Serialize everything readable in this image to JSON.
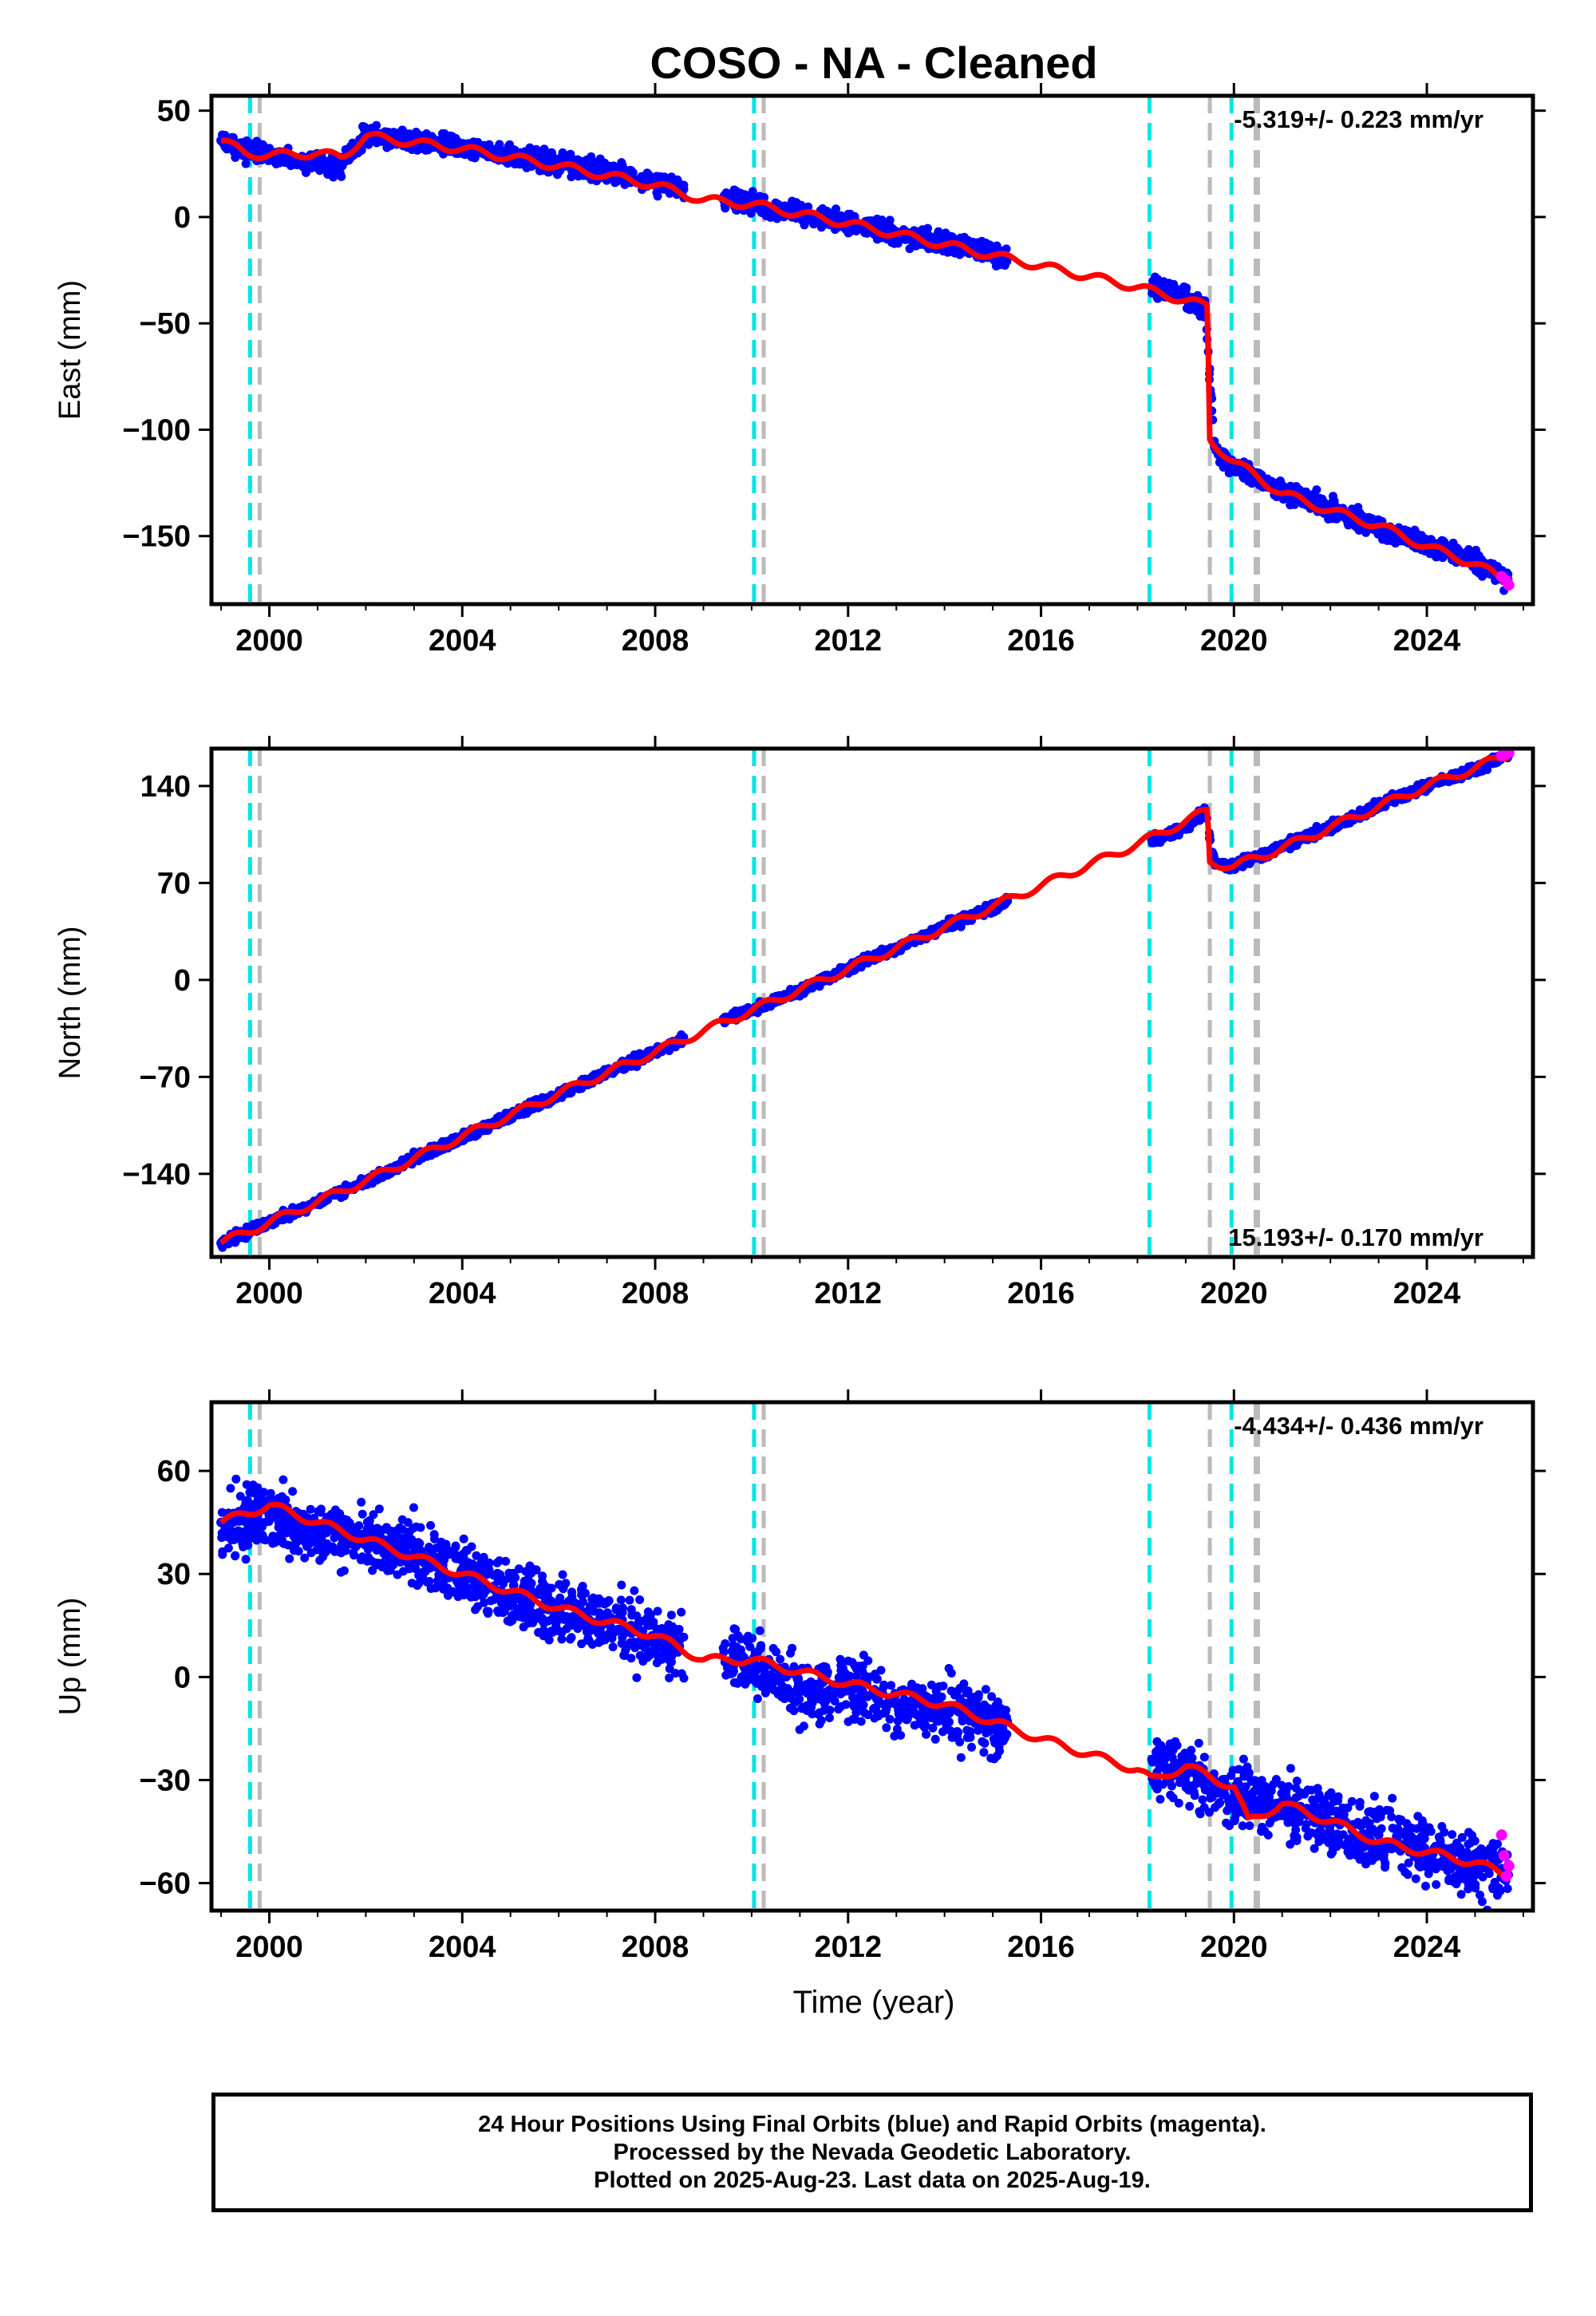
{
  "title": "COSO  - NA - Cleaned",
  "x_axis_label": "Time (year)",
  "footer": {
    "line1": "24 Hour Positions Using Final Orbits (blue) and Rapid Orbits (magenta).",
    "line2": "Processed by the Nevada Geodetic Laboratory.",
    "line3": "Plotted on 2025-Aug-23. Last data on 2025-Aug-19."
  },
  "colors": {
    "final_orbits": "#0000ff",
    "rapid_orbits": "#ff00ff",
    "model": "#ff0000",
    "cyan_lines": "#00e5e5",
    "gray_lines": "#bbbbbb"
  },
  "chart_data": [
    {
      "type": "scatter",
      "panel": "east",
      "ylabel": "East (mm)",
      "rate_label": "-5.319+/- 0.223 mm/yr",
      "rate_position": "top-right",
      "xlim": [
        1998.8,
        2026.2
      ],
      "ylim": [
        -182,
        57
      ],
      "xticks": [
        2000,
        2004,
        2008,
        2012,
        2016,
        2020,
        2024
      ],
      "yticks": [
        50,
        0,
        -50,
        -100,
        -150
      ],
      "ytick_labels": [
        "50",
        "0",
        "−50",
        "−100",
        "−150"
      ],
      "cyan_vlines": [
        1999.6,
        2010.05,
        2018.25,
        2019.95
      ],
      "gray_vlines": [
        1999.8,
        2010.25,
        2019.5,
        2020.45,
        2020.5
      ],
      "model_points": [
        [
          1999.0,
          36
        ],
        [
          1999.5,
          30
        ],
        [
          2000.0,
          29
        ],
        [
          2001.0,
          30
        ],
        [
          2001.5,
          28
        ],
        [
          2002.0,
          38
        ],
        [
          2003.0,
          35
        ],
        [
          2004.0,
          32
        ],
        [
          2006.0,
          24
        ],
        [
          2008.0,
          15
        ],
        [
          2009.0,
          8
        ],
        [
          2010.0,
          6
        ],
        [
          2012.0,
          -3
        ],
        [
          2014.0,
          -13
        ],
        [
          2016.0,
          -23
        ],
        [
          2018.0,
          -33
        ],
        [
          2019.45,
          -42
        ],
        [
          2019.5,
          -105
        ],
        [
          2020.0,
          -115
        ],
        [
          2021.0,
          -130
        ],
        [
          2022.0,
          -138
        ],
        [
          2023.0,
          -145
        ],
        [
          2024.0,
          -155
        ],
        [
          2025.0,
          -163
        ],
        [
          2025.7,
          -172
        ]
      ],
      "data_points": [
        [
          1999.0,
          36
        ],
        [
          1999.5,
          31
        ],
        [
          2000.0,
          29
        ],
        [
          2000.5,
          27
        ],
        [
          2001.0,
          26
        ],
        [
          2001.5,
          24
        ],
        [
          2002.0,
          39
        ],
        [
          2002.5,
          37
        ],
        [
          2003.0,
          36
        ],
        [
          2003.5,
          35
        ],
        [
          2004.0,
          33
        ],
        [
          2005.0,
          29
        ],
        [
          2006.0,
          25
        ],
        [
          2007.0,
          21
        ],
        [
          2008.0,
          16
        ],
        [
          2008.5,
          14
        ],
        [
          2009.5,
          8
        ],
        [
          2010.0,
          7
        ],
        [
          2010.5,
          3
        ],
        [
          2011.0,
          2
        ],
        [
          2012.0,
          -3
        ],
        [
          2013.0,
          -8
        ],
        [
          2014.0,
          -12
        ],
        [
          2015.0,
          -17
        ],
        [
          2015.3,
          -19
        ],
        [
          2018.3,
          -33
        ],
        [
          2019.0,
          -38
        ],
        [
          2019.4,
          -43
        ],
        [
          2019.6,
          -108
        ],
        [
          2020.0,
          -117
        ],
        [
          2021.0,
          -129
        ],
        [
          2022.0,
          -137
        ],
        [
          2023.0,
          -146
        ],
        [
          2024.0,
          -154
        ],
        [
          2025.0,
          -162
        ],
        [
          2025.6,
          -170
        ]
      ],
      "rapid_points": [
        [
          2025.55,
          -169
        ],
        [
          2025.65,
          -171
        ],
        [
          2025.7,
          -173
        ]
      ],
      "data_start": 1999.0,
      "data_end": 2025.7,
      "gaps": [
        [
          2008.6,
          2009.4
        ],
        [
          2015.3,
          2018.3
        ]
      ],
      "noise": 4
    },
    {
      "type": "scatter",
      "panel": "north",
      "ylabel": "North (mm)",
      "rate_label": "15.193+/- 0.170 mm/yr",
      "rate_position": "bottom-right",
      "xlim": [
        1998.8,
        2026.2
      ],
      "ylim": [
        -200,
        167
      ],
      "xticks": [
        2000,
        2004,
        2008,
        2012,
        2016,
        2020,
        2024
      ],
      "yticks": [
        140,
        70,
        0,
        -70,
        -140
      ],
      "ytick_labels": [
        "140",
        "70",
        "0",
        "−70",
        "−140"
      ],
      "cyan_vlines": [
        1999.6,
        2010.05,
        2018.25,
        2019.95
      ],
      "gray_vlines": [
        1999.8,
        2010.25,
        2019.5,
        2020.45,
        2020.5
      ],
      "model_points": [
        [
          1999.0,
          -190
        ],
        [
          2000.0,
          -175
        ],
        [
          2002.0,
          -145
        ],
        [
          2004.0,
          -113
        ],
        [
          2006.0,
          -82
        ],
        [
          2008.0,
          -52
        ],
        [
          2009.0,
          -37
        ],
        [
          2010.0,
          -22
        ],
        [
          2012.0,
          8
        ],
        [
          2014.0,
          38
        ],
        [
          2016.0,
          68
        ],
        [
          2018.0,
          98
        ],
        [
          2019.45,
          122
        ],
        [
          2019.5,
          85
        ],
        [
          2020.0,
          82
        ],
        [
          2021.0,
          95
        ],
        [
          2022.0,
          110
        ],
        [
          2023.0,
          125
        ],
        [
          2024.0,
          140
        ],
        [
          2025.0,
          153
        ],
        [
          2025.7,
          163
        ]
      ],
      "data_points": [
        [
          1999.0,
          -190
        ],
        [
          2000.0,
          -175
        ],
        [
          2001.0,
          -160
        ],
        [
          2002.0,
          -146
        ],
        [
          2003.0,
          -129
        ],
        [
          2004.0,
          -114
        ],
        [
          2005.0,
          -98
        ],
        [
          2006.0,
          -83
        ],
        [
          2007.0,
          -67
        ],
        [
          2008.0,
          -52
        ],
        [
          2008.5,
          -44
        ],
        [
          2009.5,
          -28
        ],
        [
          2010.0,
          -22
        ],
        [
          2011.0,
          -7
        ],
        [
          2012.0,
          8
        ],
        [
          2013.0,
          23
        ],
        [
          2014.0,
          38
        ],
        [
          2015.0,
          53
        ],
        [
          2015.3,
          57
        ],
        [
          2018.3,
          101
        ],
        [
          2019.0,
          110
        ],
        [
          2019.4,
          122
        ],
        [
          2019.6,
          85
        ],
        [
          2020.0,
          82
        ],
        [
          2021.0,
          96
        ],
        [
          2022.0,
          110
        ],
        [
          2023.0,
          126
        ],
        [
          2024.0,
          140
        ],
        [
          2025.0,
          152
        ],
        [
          2025.6,
          162
        ]
      ],
      "rapid_points": [
        [
          2025.55,
          162
        ],
        [
          2025.65,
          163
        ],
        [
          2025.7,
          164
        ]
      ],
      "data_start": 1999.0,
      "data_end": 2025.7,
      "gaps": [
        [
          2008.6,
          2009.4
        ],
        [
          2015.3,
          2018.3
        ]
      ],
      "noise": 3
    },
    {
      "type": "scatter",
      "panel": "up",
      "ylabel": "Up (mm)",
      "rate_label": "-4.434+/- 0.436 mm/yr",
      "rate_position": "top-right",
      "xlim": [
        1998.8,
        2026.2
      ],
      "ylim": [
        -68,
        80
      ],
      "xticks": [
        2000,
        2004,
        2008,
        2012,
        2016,
        2020,
        2024
      ],
      "yticks": [
        60,
        30,
        0,
        -30,
        -60
      ],
      "ytick_labels": [
        "60",
        "30",
        "0",
        "−30",
        "−60"
      ],
      "cyan_vlines": [
        1999.6,
        2010.05,
        2018.25,
        2019.95
      ],
      "gray_vlines": [
        1999.8,
        2010.25,
        2019.5,
        2020.45,
        2020.5
      ],
      "model_points": [
        [
          1999.0,
          45
        ],
        [
          2000.0,
          50
        ],
        [
          2002.0,
          40
        ],
        [
          2004.0,
          30
        ],
        [
          2006.0,
          20
        ],
        [
          2008.0,
          12
        ],
        [
          2009.0,
          5
        ],
        [
          2010.0,
          5
        ],
        [
          2012.0,
          -2
        ],
        [
          2014.0,
          -8
        ],
        [
          2016.0,
          -18
        ],
        [
          2018.0,
          -27
        ],
        [
          2018.3,
          -30
        ],
        [
          2019.0,
          -26
        ],
        [
          2020.0,
          -32
        ],
        [
          2020.3,
          -42
        ],
        [
          2021.0,
          -37
        ],
        [
          2022.0,
          -42
        ],
        [
          2023.0,
          -48
        ],
        [
          2024.0,
          -51
        ],
        [
          2025.0,
          -54
        ],
        [
          2025.7,
          -58
        ]
      ],
      "data_points": [
        [
          1999.0,
          45
        ],
        [
          2000.0,
          47
        ],
        [
          2001.0,
          42
        ],
        [
          2002.0,
          40
        ],
        [
          2003.0,
          36
        ],
        [
          2004.0,
          30
        ],
        [
          2005.0,
          24
        ],
        [
          2006.0,
          19
        ],
        [
          2007.0,
          16
        ],
        [
          2008.0,
          11
        ],
        [
          2008.5,
          9
        ],
        [
          2009.5,
          4
        ],
        [
          2010.0,
          4
        ],
        [
          2011.0,
          -3
        ],
        [
          2012.0,
          -4
        ],
        [
          2013.0,
          -8
        ],
        [
          2014.0,
          -10
        ],
        [
          2015.0,
          -12
        ],
        [
          2015.3,
          -13
        ],
        [
          2018.3,
          -24
        ],
        [
          2019.0,
          -28
        ],
        [
          2020.0,
          -35
        ],
        [
          2021.0,
          -38
        ],
        [
          2022.0,
          -42
        ],
        [
          2023.0,
          -46
        ],
        [
          2024.0,
          -51
        ],
        [
          2025.0,
          -55
        ],
        [
          2025.6,
          -57
        ]
      ],
      "rapid_points": [
        [
          2025.55,
          -46
        ],
        [
          2025.6,
          -52
        ],
        [
          2025.65,
          -58
        ],
        [
          2025.7,
          -55
        ]
      ],
      "data_start": 1999.0,
      "data_end": 2025.7,
      "gaps": [
        [
          2008.6,
          2009.4
        ],
        [
          2015.3,
          2018.3
        ]
      ],
      "noise": 8
    }
  ]
}
